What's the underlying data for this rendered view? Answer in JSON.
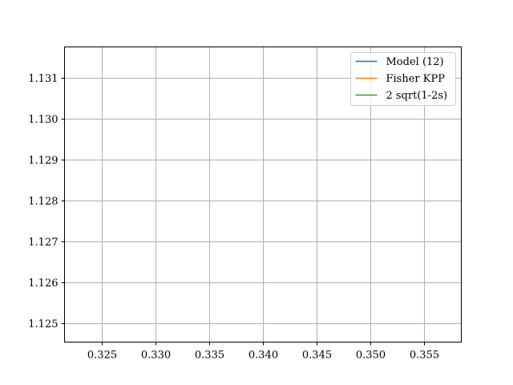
{
  "chart_data": {
    "type": "line",
    "title": "",
    "xlabel": "",
    "ylabel": "",
    "xlim": [
      0.3215,
      0.3585
    ],
    "ylim": [
      1.12455,
      1.13175
    ],
    "xticks": [
      {
        "value": 0.325,
        "label": "0.325"
      },
      {
        "value": 0.33,
        "label": "0.330"
      },
      {
        "value": 0.335,
        "label": "0.335"
      },
      {
        "value": 0.34,
        "label": "0.340"
      },
      {
        "value": 0.345,
        "label": "0.345"
      },
      {
        "value": 0.35,
        "label": "0.350"
      },
      {
        "value": 0.355,
        "label": "0.355"
      }
    ],
    "yticks": [
      {
        "value": 1.125,
        "label": "1.125"
      },
      {
        "value": 1.126,
        "label": "1.126"
      },
      {
        "value": 1.127,
        "label": "1.127"
      },
      {
        "value": 1.128,
        "label": "1.128"
      },
      {
        "value": 1.129,
        "label": "1.129"
      },
      {
        "value": 1.13,
        "label": "1.130"
      },
      {
        "value": 1.131,
        "label": "1.131"
      }
    ],
    "grid": true,
    "legend_position": "top-right",
    "series": [
      {
        "name": "Model (12)",
        "color": "#1f77b4",
        "x": [],
        "y": []
      },
      {
        "name": "Fisher KPP",
        "color": "#ff7f0e",
        "x": [],
        "y": []
      },
      {
        "name": "2 sqrt(1-2s)",
        "color": "#2ca02c",
        "x": [],
        "y": []
      }
    ]
  }
}
